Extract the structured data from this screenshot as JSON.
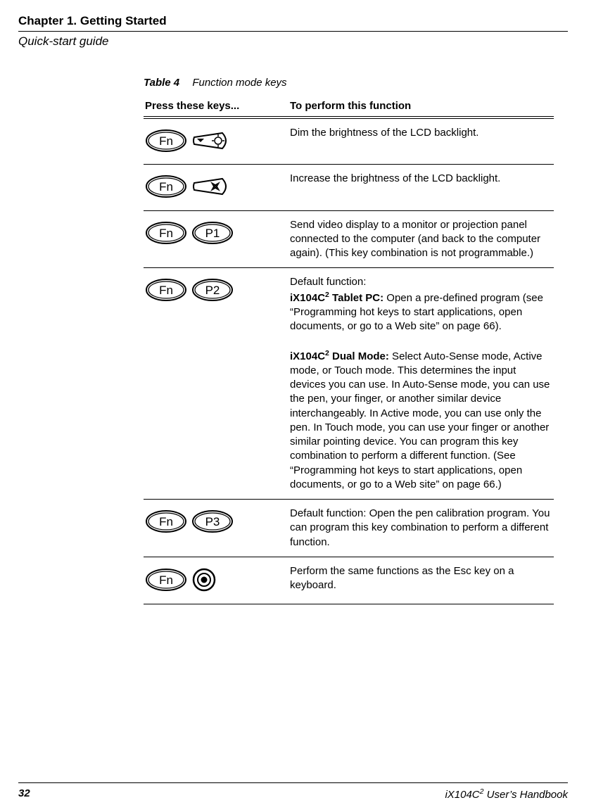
{
  "header": {
    "chapter": "Chapter 1. Getting Started",
    "subhead": "Quick-start guide"
  },
  "table": {
    "caption_label": "Table 4",
    "caption_desc": "Function mode keys",
    "col1": "Press these keys...",
    "col2": "To perform this function",
    "rows": [
      {
        "key1": "Fn",
        "key2_type": "icon-dim",
        "key2_label": "",
        "desc_html": "Dim the brightness of the LCD backlight."
      },
      {
        "key1": "Fn",
        "key2_type": "icon-bright",
        "key2_label": "",
        "desc_html": "Increase the brightness of the LCD backlight."
      },
      {
        "key1": "Fn",
        "key2_type": "oval",
        "key2_label": "P1",
        "desc_html": "Send video display to a monitor or projection panel connected to the computer (and back to the computer again). (This key combination is not programmable.)"
      },
      {
        "key1": "Fn",
        "key2_type": "oval",
        "key2_label": "P2",
        "desc_html": "Default function:<br><b>iX104C<span class=\"sup2\">2</span> Tablet PC:</b> Open a pre-defined program (see “Programming hot keys to start applications, open documents, or go to a Web site” on page 66).<br><br><b>iX104C<span class=\"sup2\">2</span> Dual Mode:</b>  Select Auto-Sense mode, Active mode, or Touch mode. This determines the input devices you can use. In Auto-Sense mode, you can use the pen, your finger, or another similar device interchangeably. In Active mode, you can use only the pen. In Touch mode, you can use your finger or another similar pointing device. You can program this key combination to perform a different function. (See “Programming hot keys to start applications, open documents, or go to a Web site” on page 66.)"
      },
      {
        "key1": "Fn",
        "key2_type": "oval",
        "key2_label": "P3",
        "desc_html": "Default function: Open the pen calibration program. You can program this key combination to perform a different function."
      },
      {
        "key1": "Fn",
        "key2_type": "circle",
        "key2_label": "",
        "desc_html": "Perform the same functions as the Esc key on a keyboard."
      }
    ]
  },
  "footer": {
    "page_number": "32",
    "book_title_html": "iX104C<span class=\"sup2\">2</span> User’s Handbook"
  },
  "style": {
    "key_fill": "#ffffff",
    "key_stroke": "#000000",
    "text_color": "#000000"
  }
}
